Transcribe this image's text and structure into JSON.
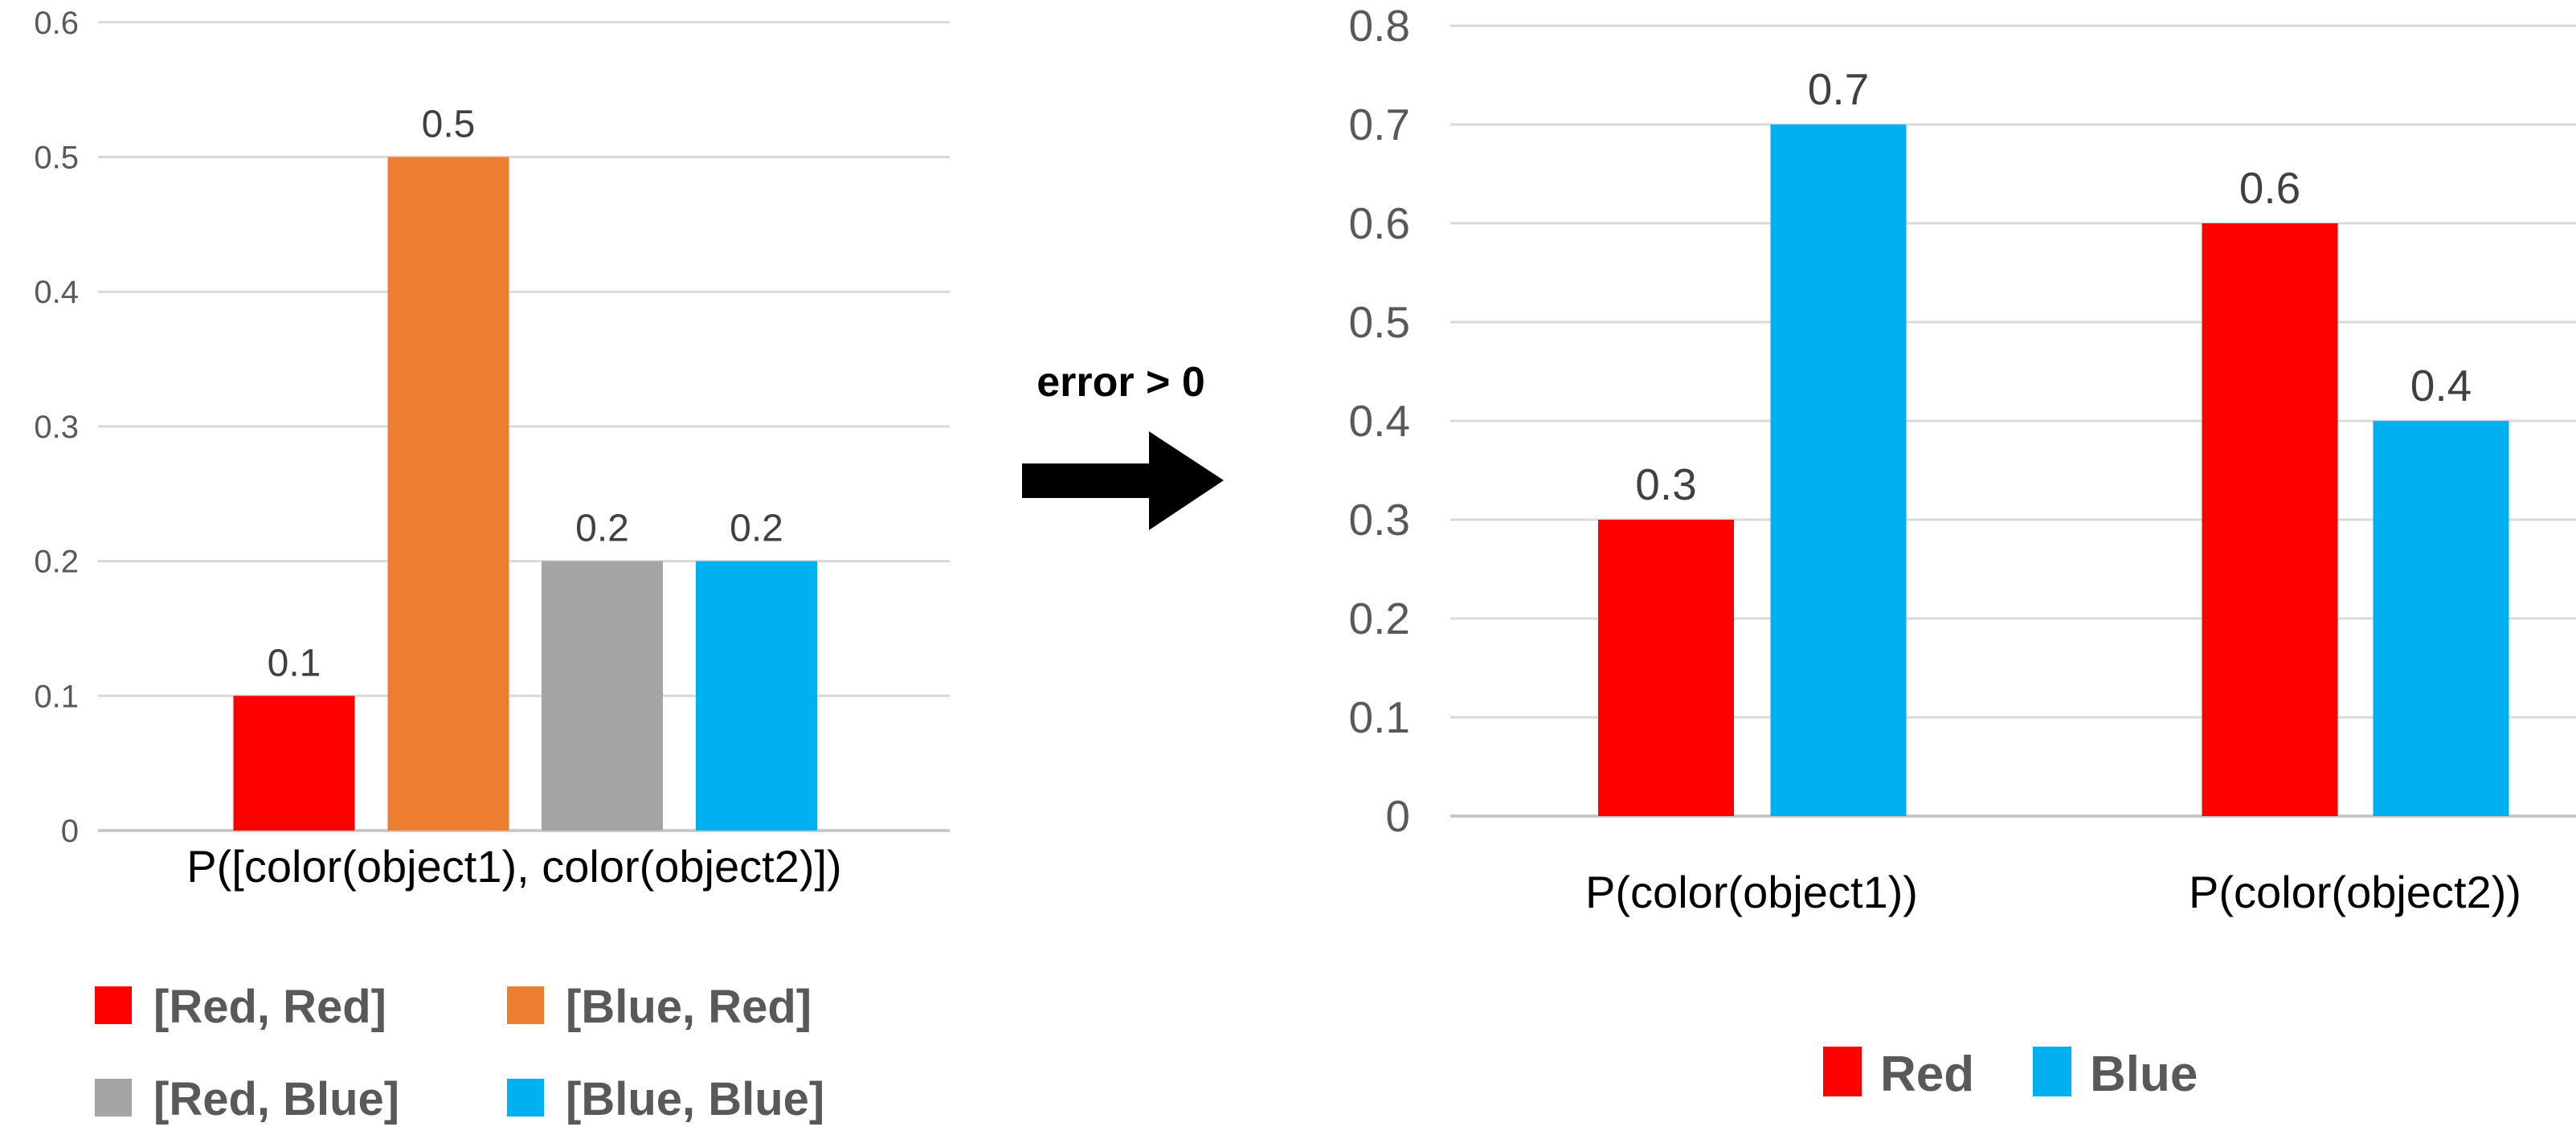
{
  "figure": {
    "arrow_label": "error > 0"
  },
  "chart_data": [
    {
      "type": "bar",
      "title": "",
      "categories": [
        "P([color(object1), color(object2)])"
      ],
      "series": [
        {
          "name": "[Red, Red]",
          "color": "#FF0000",
          "values": [
            0.1
          ]
        },
        {
          "name": "[Blue, Red]",
          "color": "#ED7D31",
          "values": [
            0.5
          ]
        },
        {
          "name": "[Red, Blue]",
          "color": "#A5A5A5",
          "values": [
            0.2
          ]
        },
        {
          "name": "[Blue, Blue]",
          "color": "#00B0F0",
          "values": [
            0.2
          ]
        }
      ],
      "data_labels": [
        [
          "0.1"
        ],
        [
          "0.5"
        ],
        [
          "0.2"
        ],
        [
          "0.2"
        ]
      ],
      "ylim": [
        0,
        0.6
      ],
      "ytick_step": 0.1,
      "ytick_labels": [
        "0",
        "0.1",
        "0.2",
        "0.3",
        "0.4",
        "0.5",
        "0.6"
      ],
      "grid": true,
      "legend_position": "bottom"
    },
    {
      "type": "bar",
      "title": "",
      "categories": [
        "P(color(object1))",
        "P(color(object2))"
      ],
      "series": [
        {
          "name": "Red",
          "color": "#FF0000",
          "values": [
            0.3,
            0.6
          ]
        },
        {
          "name": "Blue",
          "color": "#00B0F0",
          "values": [
            0.7,
            0.4
          ]
        }
      ],
      "data_labels": [
        [
          "0.3",
          "0.6"
        ],
        [
          "0.7",
          "0.4"
        ]
      ],
      "ylim": [
        0,
        0.8
      ],
      "ytick_step": 0.1,
      "ytick_labels": [
        "0",
        "0.1",
        "0.2",
        "0.3",
        "0.4",
        "0.5",
        "0.6",
        "0.7",
        "0.8"
      ],
      "grid": true,
      "legend_position": "bottom"
    }
  ],
  "colors": {
    "red": "#FF0000",
    "orange": "#ED7D31",
    "gray": "#A5A5A5",
    "blue": "#00B0F0",
    "gridline": "#D9D9D9",
    "axis_line": "#C9C9C9",
    "tick_text": "#595959",
    "data_label_text": "#404040",
    "category_text": "#000000",
    "legend_text": "#595959",
    "arrow": "#000000"
  }
}
